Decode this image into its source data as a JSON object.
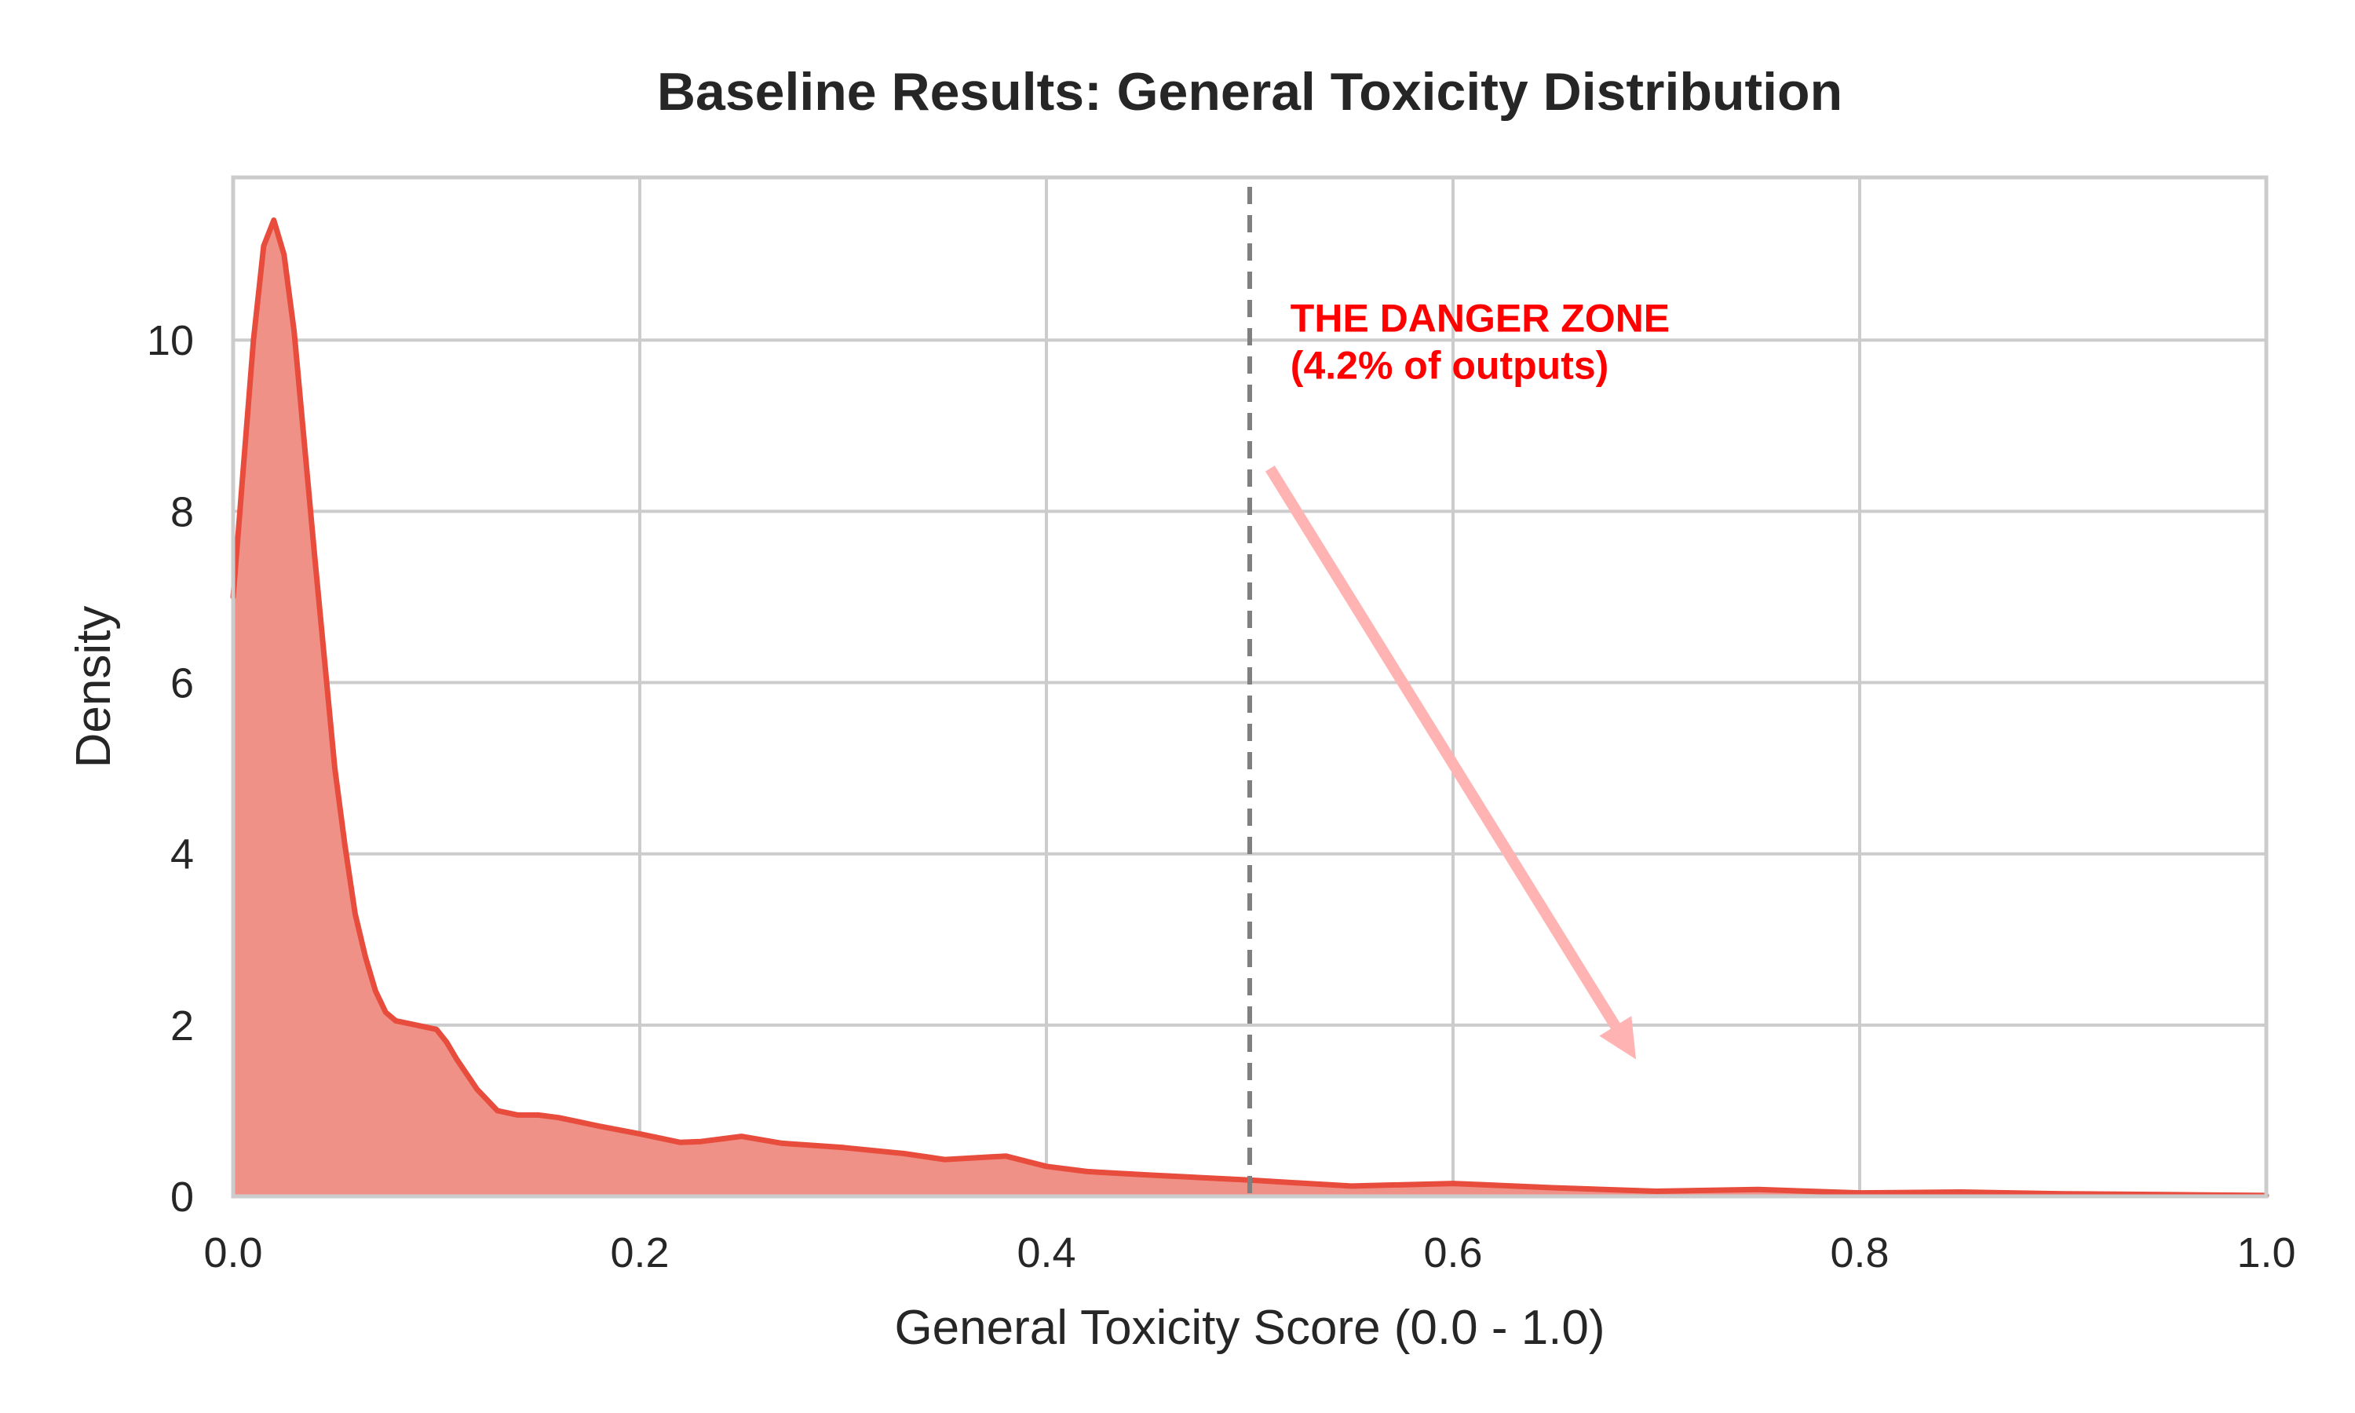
{
  "chart_data": {
    "type": "area",
    "title": "Baseline Results: General Toxicity Distribution",
    "xlabel": "General Toxicity Score (0.0 - 1.0)",
    "ylabel": "Density",
    "xlim": [
      0.0,
      1.0
    ],
    "ylim": [
      0,
      11.9
    ],
    "xticks": [
      0.0,
      0.2,
      0.4,
      0.6,
      0.8,
      1.0
    ],
    "xtick_labels": [
      "0.0",
      "0.2",
      "0.4",
      "0.6",
      "0.8",
      "1.0"
    ],
    "yticks": [
      0,
      2,
      4,
      6,
      8,
      10
    ],
    "ytick_labels": [
      "0",
      "2",
      "4",
      "6",
      "8",
      "10"
    ],
    "grid": true,
    "line_color": "#e74c3c",
    "fill_color": "#ef9187",
    "threshold_color": "#808080",
    "arrow_color": "#ffb3b3",
    "threshold": {
      "x": 0.5,
      "style": "dashed"
    },
    "annotation": {
      "lines": [
        "THE DANGER ZONE",
        "(4.2% of outputs)"
      ],
      "x": 0.52,
      "y": 10.1,
      "color": "#ff0000"
    },
    "arrow": {
      "from": [
        0.51,
        8.5
      ],
      "to": [
        0.69,
        1.6
      ]
    },
    "series": [
      {
        "x": [
          0.0,
          0.005,
          0.01,
          0.015,
          0.02,
          0.025,
          0.03,
          0.04,
          0.05,
          0.055,
          0.06,
          0.065,
          0.07,
          0.075,
          0.08,
          0.09,
          0.1,
          0.105,
          0.11,
          0.12,
          0.13,
          0.14,
          0.15,
          0.16,
          0.17,
          0.18,
          0.2,
          0.22,
          0.23,
          0.25,
          0.27,
          0.3,
          0.33,
          0.35,
          0.38,
          0.4,
          0.42,
          0.45,
          0.5,
          0.55,
          0.6,
          0.65,
          0.7,
          0.75,
          0.8,
          0.85,
          0.9,
          0.95,
          1.0
        ],
        "y": [
          7.0,
          8.5,
          10.0,
          11.1,
          11.4,
          11.0,
          10.1,
          7.5,
          5.0,
          4.1,
          3.3,
          2.8,
          2.4,
          2.15,
          2.05,
          2.0,
          1.95,
          1.8,
          1.6,
          1.25,
          1.0,
          0.95,
          0.95,
          0.92,
          0.87,
          0.82,
          0.73,
          0.63,
          0.64,
          0.7,
          0.62,
          0.57,
          0.5,
          0.43,
          0.47,
          0.35,
          0.29,
          0.25,
          0.19,
          0.12,
          0.15,
          0.1,
          0.06,
          0.08,
          0.04,
          0.05,
          0.03,
          0.02,
          0.01
        ]
      }
    ]
  }
}
